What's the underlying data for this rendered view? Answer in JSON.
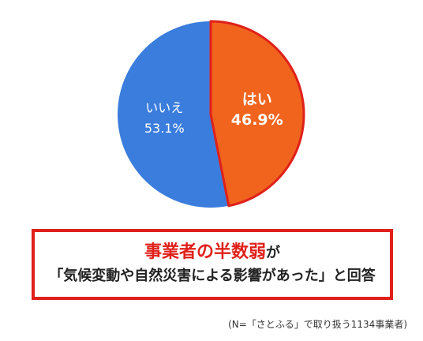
{
  "chart_data": {
    "type": "pie",
    "categories": [
      "はい",
      "いいえ"
    ],
    "values": [
      46.9,
      53.1
    ],
    "value_labels": [
      "46.9%",
      "53.1%"
    ],
    "colors": [
      "#f0641e",
      "#3b7ddd"
    ],
    "headline": [
      "事業者の半数弱",
      "が"
    ],
    "subtitle": "「気候変動や自然災害による影響があった」と回答",
    "note": "(N=「さとふる」で取り扱う1134事業者)"
  }
}
